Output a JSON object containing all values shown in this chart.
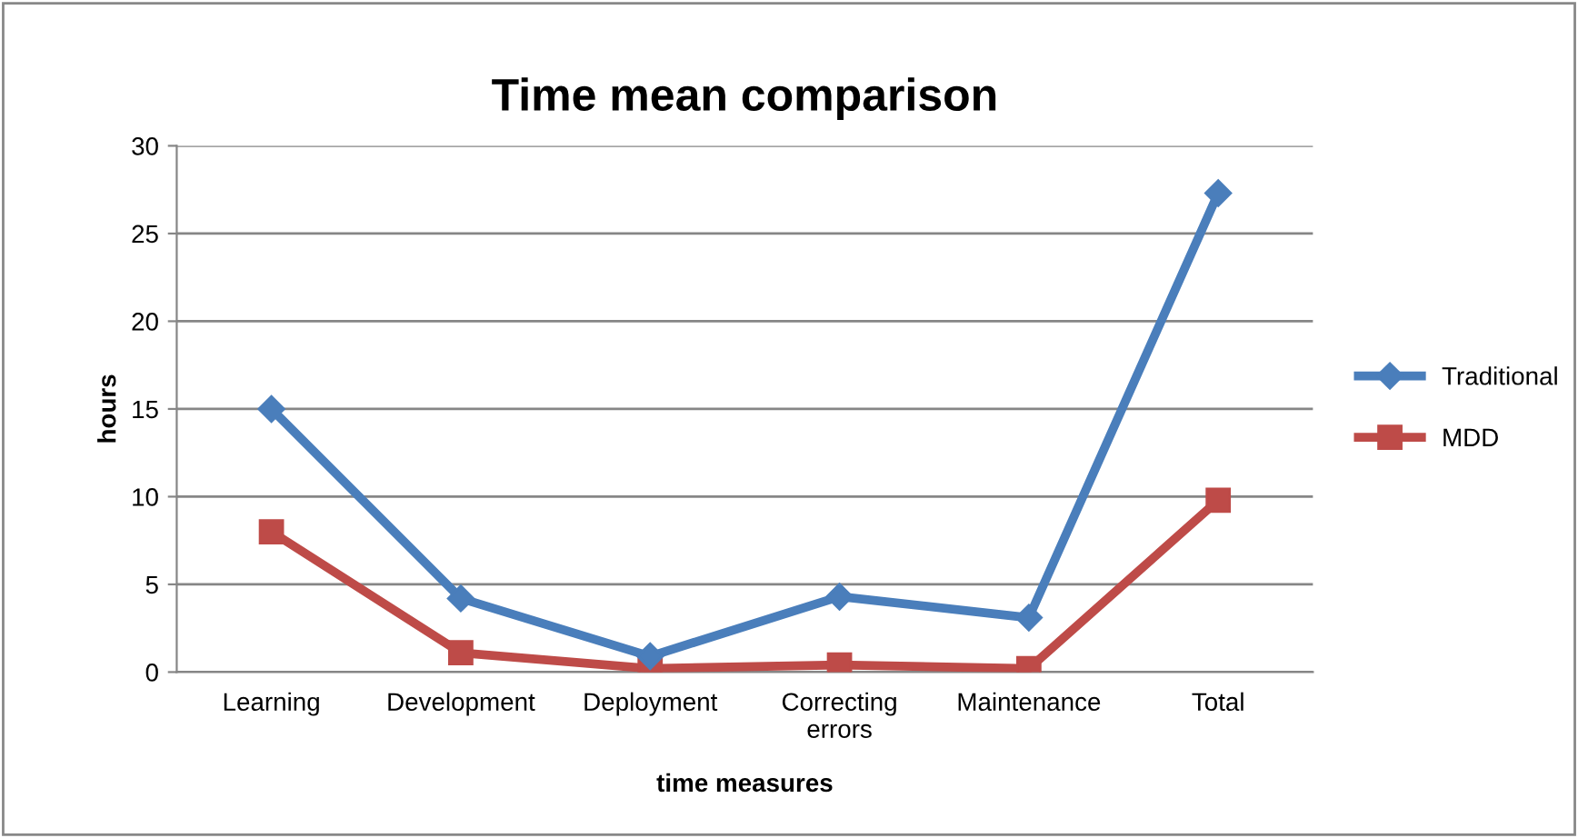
{
  "chart_data": {
    "type": "line",
    "title": "Time mean comparison",
    "xlabel": "time measures",
    "ylabel": "hours",
    "categories": [
      "Learning",
      "Development",
      "Deployment",
      "Correcting\nerrors",
      "Maintenance",
      "Total"
    ],
    "series": [
      {
        "name": "Traditional",
        "color": "#4a7ebb",
        "values": [
          15.0,
          4.2,
          0.9,
          4.3,
          3.1,
          27.3
        ],
        "marker": "diamond"
      },
      {
        "name": "MDD",
        "color": "#be4b48",
        "values": [
          8.0,
          1.1,
          0.2,
          0.4,
          0.2,
          9.8
        ],
        "marker": "square"
      }
    ],
    "ylim": [
      0,
      30
    ],
    "yticks": [
      0,
      5,
      10,
      15,
      20,
      25,
      30
    ],
    "grid": "y",
    "legend": "right"
  }
}
